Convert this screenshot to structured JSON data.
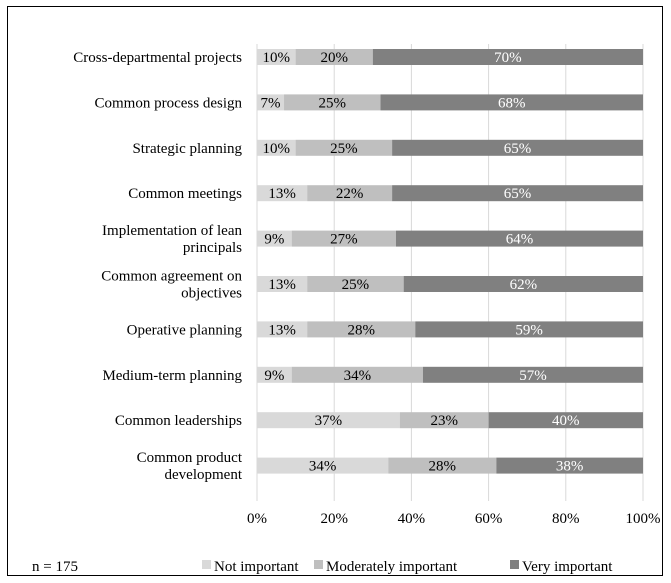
{
  "chart_data": {
    "type": "bar",
    "stacked": true,
    "orientation": "horizontal",
    "categories": [
      "Cross-departmental projects",
      "Common process design",
      "Strategic planning",
      "Common meetings",
      "Implementation of lean principals",
      "Common agreement on objectives",
      "Operative planning",
      "Medium-term planning",
      "Common leaderships",
      "Common product development"
    ],
    "category_lines": [
      [
        "Cross-departmental projects"
      ],
      [
        "Common process design"
      ],
      [
        "Strategic planning"
      ],
      [
        "Common meetings"
      ],
      [
        "Implementation of lean",
        "principals"
      ],
      [
        "Common agreement on",
        "objectives"
      ],
      [
        "Operative planning"
      ],
      [
        "Medium-term planning"
      ],
      [
        "Common leaderships"
      ],
      [
        "Common product",
        "development"
      ]
    ],
    "series": [
      {
        "name": "Not important",
        "color": "#d9d9d9",
        "label_color": "#000000",
        "values": [
          10,
          7,
          10,
          13,
          9,
          13,
          13,
          9,
          37,
          34
        ]
      },
      {
        "name": "Moderately important",
        "color": "#bfbfbf",
        "label_color": "#000000",
        "values": [
          20,
          25,
          25,
          22,
          27,
          25,
          28,
          34,
          23,
          28
        ]
      },
      {
        "name": "Very important",
        "color": "#808080",
        "label_color": "#ffffff",
        "values": [
          70,
          68,
          65,
          65,
          64,
          62,
          59,
          57,
          40,
          38
        ]
      }
    ],
    "value_suffix": "%",
    "x_ticks": [
      "0%",
      "20%",
      "40%",
      "60%",
      "80%",
      "100%"
    ],
    "xlim": [
      0,
      100
    ],
    "grid": true,
    "legend_position": "bottom",
    "note": "n = 175"
  }
}
